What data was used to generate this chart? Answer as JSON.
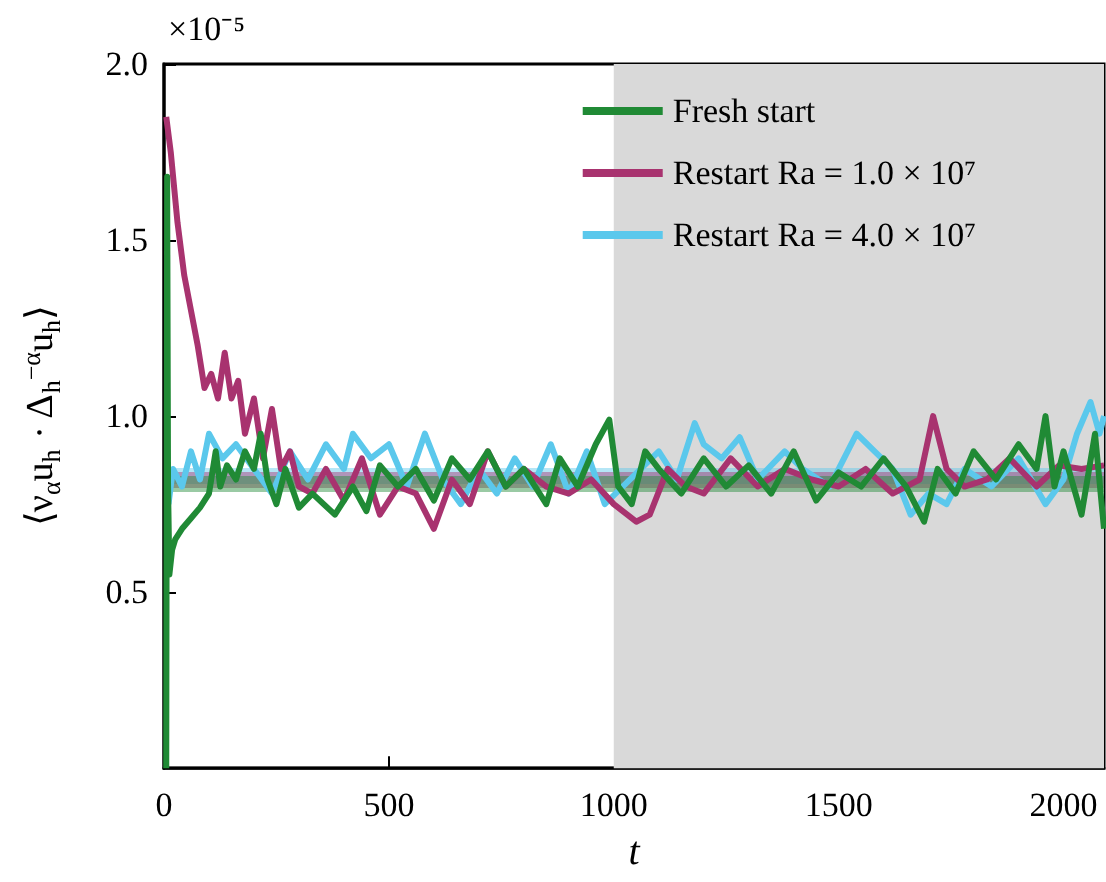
{
  "chart_data": {
    "type": "line",
    "xlabel": "t",
    "ylabel": "⟨ν$_{α}$u$_{h}$ · Δ$_{h}$$^{−α}$u$_{h}$⟩",
    "annotations": [
      "×10⁻⁵"
    ],
    "xlim": [
      0,
      2090
    ],
    "xticks": [
      0,
      500,
      1000,
      1500,
      2000
    ],
    "ylim": [
      0,
      2
    ],
    "yticks": [
      0.5,
      {
        "value": 1,
        "label": "1.0"
      },
      1.5,
      {
        "value": 2,
        "label": "2.0"
      }
    ],
    "grid": false,
    "legend": "top right",
    "line_style": "solid",
    "marker": "none",
    "bands": [
      {
        "axis": "x",
        "from": 1000,
        "to": 2090,
        "color": "#d9d9d9"
      }
    ],
    "ref_lines": [
      {
        "axis": "y",
        "value": 0.83,
        "color": "#5bc8ec"
      },
      {
        "axis": "y",
        "value": 0.82,
        "color": "#a8336f"
      },
      {
        "axis": "y",
        "value": 0.81,
        "color": "#208a35"
      }
    ],
    "series": [
      {
        "name": "Fresh start",
        "color": "#208a35",
        "x": [
          5,
          7,
          9,
          12,
          18,
          25,
          40,
          60,
          80,
          100,
          115,
          125,
          140,
          160,
          180,
          200,
          215,
          230,
          250,
          270,
          300,
          330,
          380,
          420,
          450,
          480,
          520,
          560,
          600,
          640,
          680,
          720,
          760,
          800,
          850,
          880,
          920,
          960,
          990,
          1010,
          1040,
          1070,
          1100,
          1150,
          1200,
          1250,
          1300,
          1350,
          1400,
          1450,
          1500,
          1550,
          1600,
          1650,
          1690,
          1720,
          1760,
          1800,
          1850,
          1900,
          1940,
          1960,
          1980,
          2000,
          2040,
          2070,
          2090
        ],
        "values": [
          0.0,
          1.68,
          0.8,
          0.55,
          0.62,
          0.65,
          0.68,
          0.71,
          0.74,
          0.78,
          0.9,
          0.8,
          0.86,
          0.82,
          0.9,
          0.85,
          0.95,
          0.82,
          0.75,
          0.85,
          0.74,
          0.78,
          0.72,
          0.8,
          0.73,
          0.86,
          0.8,
          0.85,
          0.76,
          0.88,
          0.82,
          0.9,
          0.8,
          0.85,
          0.75,
          0.88,
          0.8,
          0.92,
          0.99,
          0.8,
          0.75,
          0.9,
          0.85,
          0.78,
          0.88,
          0.8,
          0.86,
          0.78,
          0.9,
          0.76,
          0.84,
          0.8,
          0.88,
          0.8,
          0.7,
          0.85,
          0.78,
          0.9,
          0.82,
          0.92,
          0.85,
          1.0,
          0.8,
          0.9,
          0.72,
          0.95,
          0.68
        ]
      },
      {
        "name": "Restart Ra = 1.0 × 10⁷",
        "color": "#a8336f",
        "x": [
          5,
          15,
          30,
          45,
          60,
          75,
          90,
          105,
          120,
          135,
          150,
          165,
          180,
          200,
          220,
          240,
          260,
          280,
          300,
          330,
          360,
          400,
          440,
          480,
          520,
          560,
          600,
          640,
          680,
          720,
          760,
          800,
          850,
          900,
          950,
          1000,
          1050,
          1080,
          1120,
          1160,
          1200,
          1260,
          1320,
          1380,
          1440,
          1500,
          1560,
          1620,
          1680,
          1710,
          1740,
          1780,
          1830,
          1880,
          1940,
          1990,
          2040,
          2090
        ],
        "values": [
          1.85,
          1.75,
          1.55,
          1.4,
          1.3,
          1.2,
          1.08,
          1.12,
          1.05,
          1.18,
          1.05,
          1.1,
          0.95,
          1.05,
          0.88,
          1.02,
          0.85,
          0.9,
          0.8,
          0.78,
          0.85,
          0.76,
          0.88,
          0.72,
          0.8,
          0.78,
          0.68,
          0.82,
          0.75,
          0.9,
          0.8,
          0.85,
          0.8,
          0.78,
          0.82,
          0.75,
          0.7,
          0.72,
          0.85,
          0.8,
          0.78,
          0.88,
          0.8,
          0.85,
          0.82,
          0.8,
          0.85,
          0.78,
          0.82,
          1.0,
          0.85,
          0.8,
          0.82,
          0.88,
          0.8,
          0.86,
          0.85,
          0.86
        ]
      },
      {
        "name": "Restart Ra = 4.0 × 10⁷",
        "color": "#5bc8ec",
        "x": [
          10,
          20,
          40,
          60,
          80,
          100,
          130,
          160,
          200,
          240,
          280,
          320,
          360,
          400,
          420,
          460,
          500,
          540,
          580,
          620,
          660,
          700,
          740,
          780,
          820,
          860,
          900,
          940,
          980,
          1020,
          1060,
          1100,
          1140,
          1180,
          1200,
          1240,
          1280,
          1320,
          1380,
          1420,
          1480,
          1540,
          1580,
          1620,
          1660,
          1700,
          1740,
          1780,
          1840,
          1900,
          1960,
          2000,
          2030,
          2060,
          2080,
          2090
        ],
        "values": [
          0.75,
          0.85,
          0.8,
          0.9,
          0.82,
          0.95,
          0.88,
          0.92,
          0.85,
          0.78,
          0.9,
          0.82,
          0.92,
          0.85,
          0.95,
          0.88,
          0.92,
          0.8,
          0.95,
          0.82,
          0.75,
          0.85,
          0.78,
          0.88,
          0.8,
          0.92,
          0.78,
          0.9,
          0.75,
          0.8,
          0.85,
          0.9,
          0.82,
          0.98,
          0.92,
          0.88,
          0.94,
          0.82,
          0.9,
          0.85,
          0.8,
          0.95,
          0.9,
          0.85,
          0.72,
          0.78,
          0.75,
          0.85,
          0.8,
          0.88,
          0.75,
          0.82,
          0.95,
          1.04,
          0.95,
          1.0
        ]
      }
    ]
  }
}
